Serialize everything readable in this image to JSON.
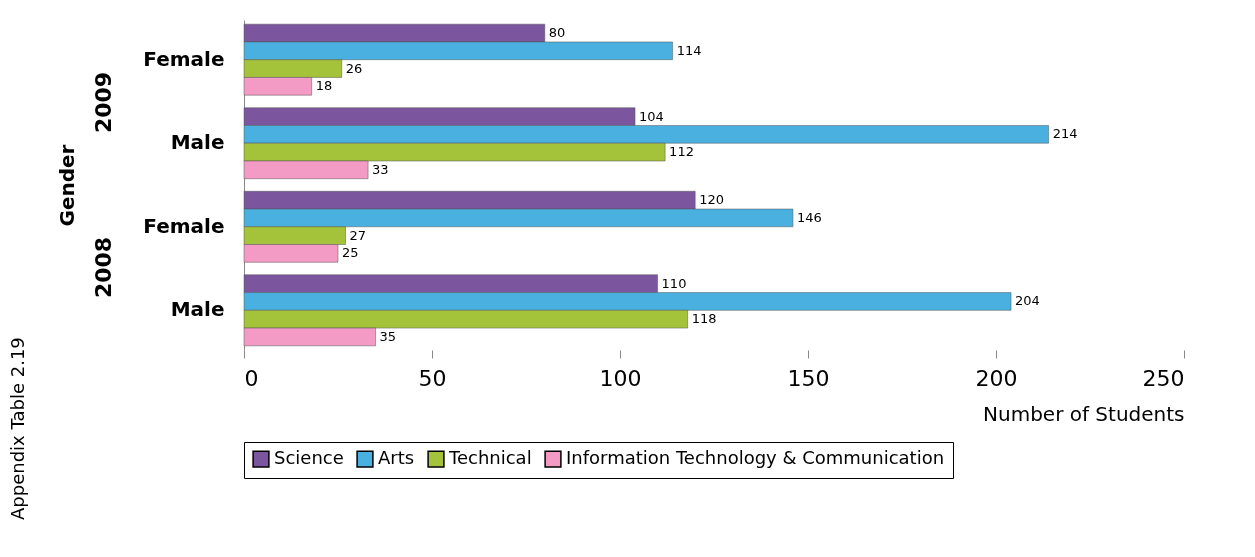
{
  "chart_data": {
    "type": "bar",
    "orientation": "horizontal",
    "ylabel": "Gender",
    "xlabel": "Number of Students",
    "categories": [
      "Female",
      "Male",
      "Female",
      "Male"
    ],
    "series": [
      {
        "name": "Science",
        "color": "#7b559e",
        "values": [
          80,
          104,
          120,
          110
        ]
      },
      {
        "name": "Arts",
        "color": "#4ab0e0",
        "values": [
          114,
          214,
          146,
          204
        ]
      },
      {
        "name": "Technical",
        "color": "#a4c23a",
        "values": [
          26,
          112,
          27,
          118
        ]
      },
      {
        "name": "Information Technology & Communication",
        "color": "#f39ac5",
        "values": [
          18,
          33,
          25,
          35
        ]
      }
    ],
    "xlim": [
      0,
      250
    ],
    "xticks": [
      0,
      50,
      100,
      150,
      200,
      250
    ],
    "grid": false,
    "legend": "bottom",
    "data_labels": true,
    "annotations": [
      "2009",
      "2008",
      "Appendix Table 2.19"
    ]
  }
}
